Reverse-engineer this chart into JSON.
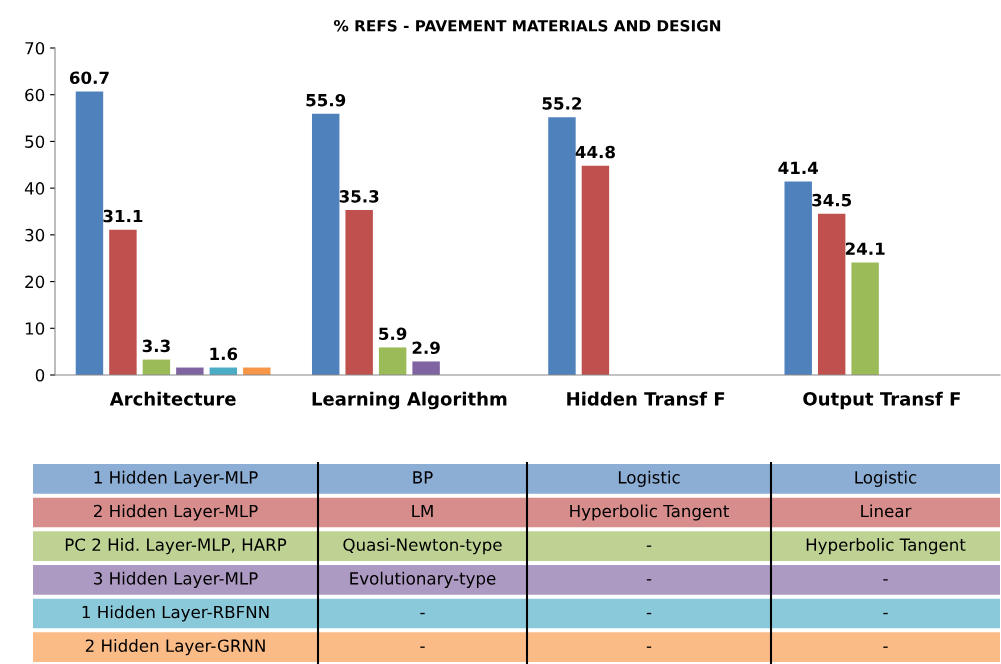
{
  "chart_data": {
    "type": "bar",
    "title": "% REFS - PAVEMENT MATERIALS AND DESIGN",
    "categories": [
      "Architecture",
      "Learning Algorithm",
      "Hidden Transf F",
      "Output Transf F"
    ],
    "series": [
      {
        "color": "#4f81bd",
        "values": [
          60.7,
          55.9,
          55.2,
          41.4
        ],
        "value_labels": [
          "60.7",
          "55.9",
          "55.2",
          "41.4"
        ]
      },
      {
        "color": "#c0504d",
        "values": [
          31.1,
          35.3,
          44.8,
          34.5
        ],
        "value_labels": [
          "31.1",
          "35.3",
          "44.8",
          "34.5"
        ]
      },
      {
        "color": "#9bbb59",
        "values": [
          3.3,
          5.9,
          null,
          24.1
        ],
        "value_labels": [
          "3.3",
          "5.9",
          null,
          "24.1"
        ]
      },
      {
        "color": "#8064a2",
        "values": [
          1.6,
          2.9,
          null,
          null
        ],
        "value_labels": [
          null,
          "2.9",
          null,
          null
        ]
      },
      {
        "color": "#4bacc6",
        "values": [
          1.6,
          null,
          null,
          null
        ],
        "value_labels": [
          "1.6",
          null,
          null,
          null
        ]
      },
      {
        "color": "#f79646",
        "values": [
          1.6,
          null,
          null,
          null
        ],
        "value_labels": [
          null,
          null,
          null,
          null
        ]
      }
    ],
    "ylim": [
      0,
      70
    ],
    "yticks": [
      0,
      10,
      20,
      30,
      40,
      50,
      60,
      70
    ],
    "grid": false,
    "legend": false,
    "annotations": [
      "1 Hidden Layer-MLP",
      "BP",
      "Logistic",
      "Logistic",
      "2 Hidden Layer-MLP",
      "LM",
      "Hyperbolic Tangent",
      "Linear",
      "PC 2 Hid. Layer-MLP, HARP",
      "Quasi-Newton-type",
      "-",
      "Hyperbolic Tangent",
      "3 Hidden Layer-MLP",
      "Evolutionary-type",
      "-",
      "-",
      "1 Hidden Layer-RBFNN",
      "-",
      "-",
      "-",
      "2 Hidden Layer-GRNN",
      "-",
      "-",
      "-"
    ]
  }
}
